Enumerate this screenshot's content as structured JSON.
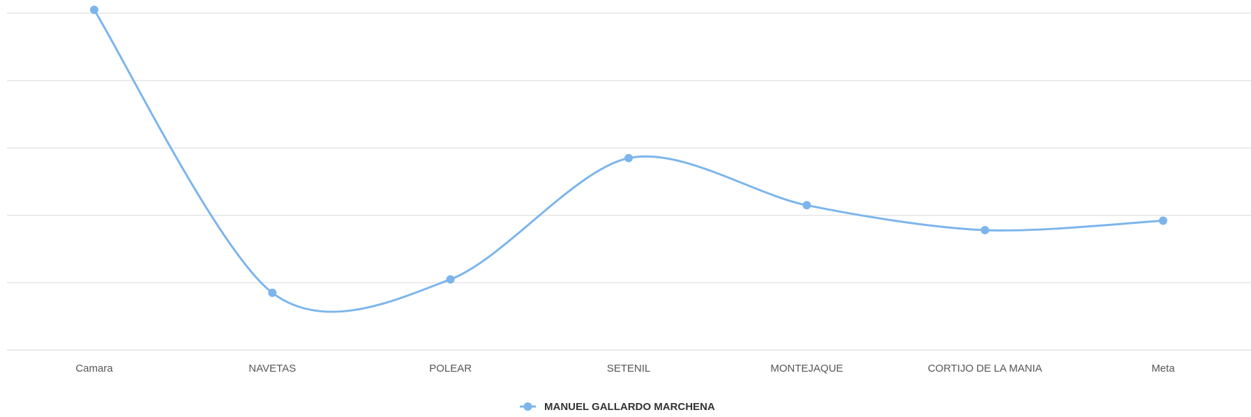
{
  "chart_data": {
    "type": "line",
    "title": "",
    "xlabel": "",
    "ylabel": "",
    "categories": [
      "Camara",
      "NAVETAS",
      "POLEAR",
      "SETENIL",
      "MONTEJAQUE",
      "CORTIJO DE LA MANIA",
      "Meta"
    ],
    "series": [
      {
        "name": "MANUEL GALLARDO MARCHENA",
        "values": [
          5.05,
          0.85,
          1.05,
          2.85,
          2.15,
          1.78,
          1.92
        ],
        "color": "#7cb5ec"
      }
    ],
    "ylim": [
      0,
      5
    ],
    "y_ticks": [
      0,
      1,
      2,
      3,
      4,
      5
    ],
    "grid": true,
    "y_tick_labels_visible": false,
    "legend_position": "bottom-center",
    "smooth": true
  }
}
